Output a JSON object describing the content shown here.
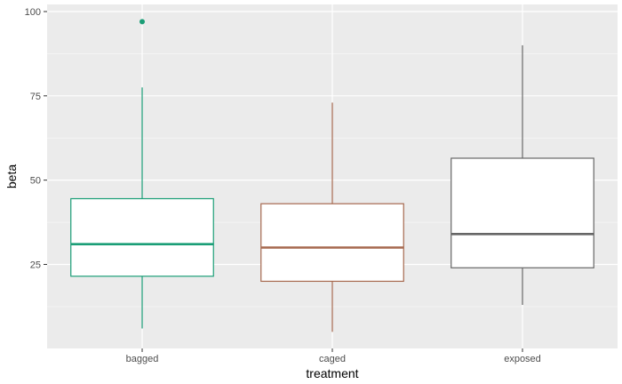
{
  "chart_data": {
    "type": "boxplot",
    "xlabel": "treatment",
    "ylabel": "beta",
    "ylim": [
      0,
      100
    ],
    "y_ticks": [
      25,
      50,
      75,
      100
    ],
    "grid": true,
    "legend": "none",
    "background_color": "#ebebeb",
    "categories": [
      "bagged",
      "caged",
      "exposed"
    ],
    "boxes": [
      {
        "category": "bagged",
        "color": "#1b9e77",
        "whisker_low": 6,
        "q1": 21.5,
        "median": 31,
        "q3": 44.5,
        "whisker_high": 77.5,
        "outliers": [
          97
        ]
      },
      {
        "category": "caged",
        "color": "#a6694f",
        "whisker_low": 5,
        "q1": 20,
        "median": 30,
        "q3": 43,
        "whisker_high": 73,
        "outliers": []
      },
      {
        "category": "exposed",
        "color": "#666666",
        "whisker_low": 13,
        "q1": 24,
        "median": 34,
        "q3": 56.5,
        "whisker_high": 90,
        "outliers": []
      }
    ]
  }
}
